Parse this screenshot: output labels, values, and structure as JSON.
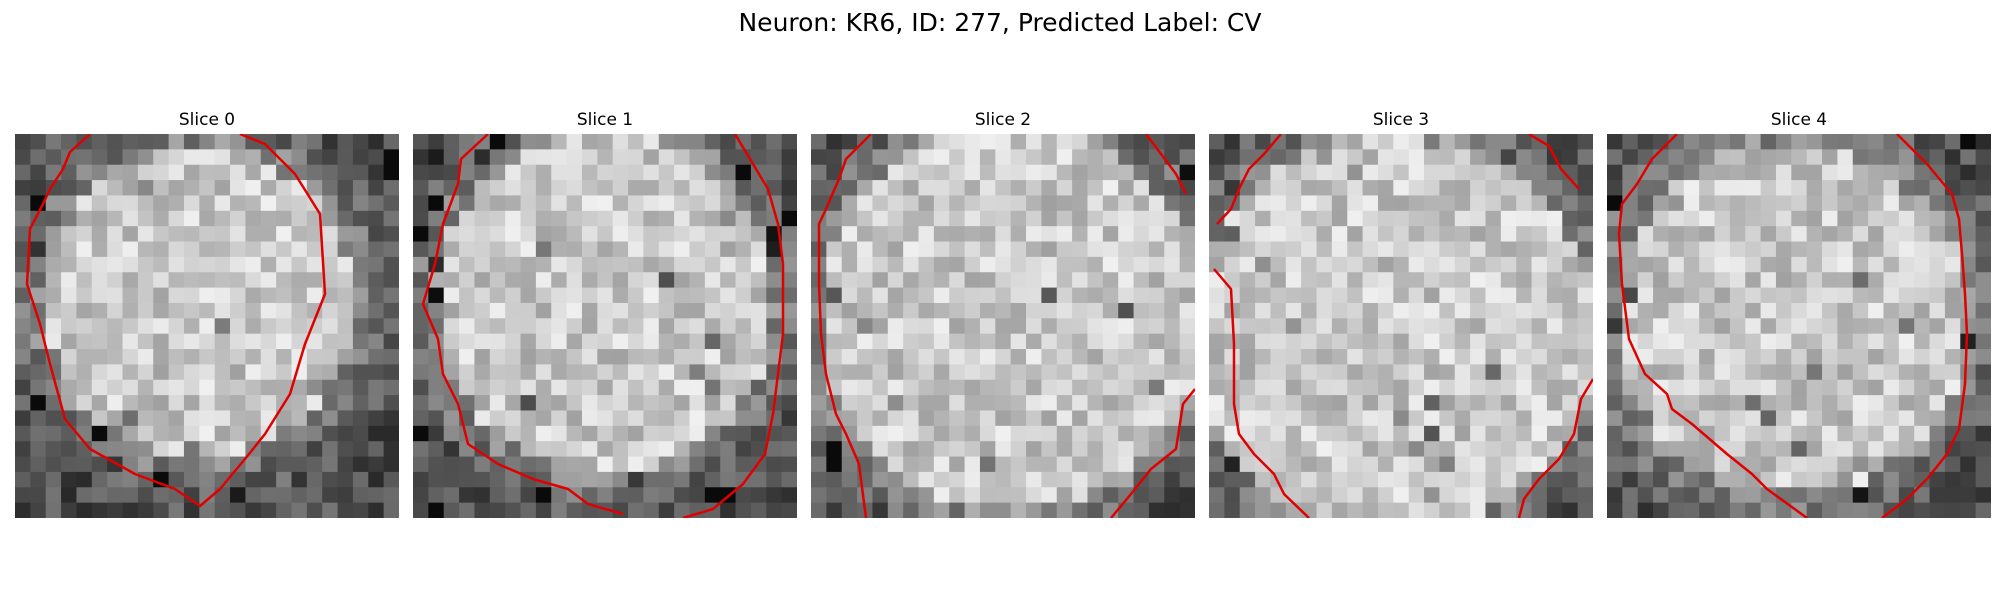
{
  "figure": {
    "title": "Neuron: KR6, ID: 277, Predicted Label: CV"
  },
  "panels": [
    {
      "title": "Slice 0"
    },
    {
      "title": "Slice 1"
    },
    {
      "title": "Slice 2"
    },
    {
      "title": "Slice 3"
    },
    {
      "title": "Slice 4"
    }
  ],
  "contour_color": "#e00000"
}
